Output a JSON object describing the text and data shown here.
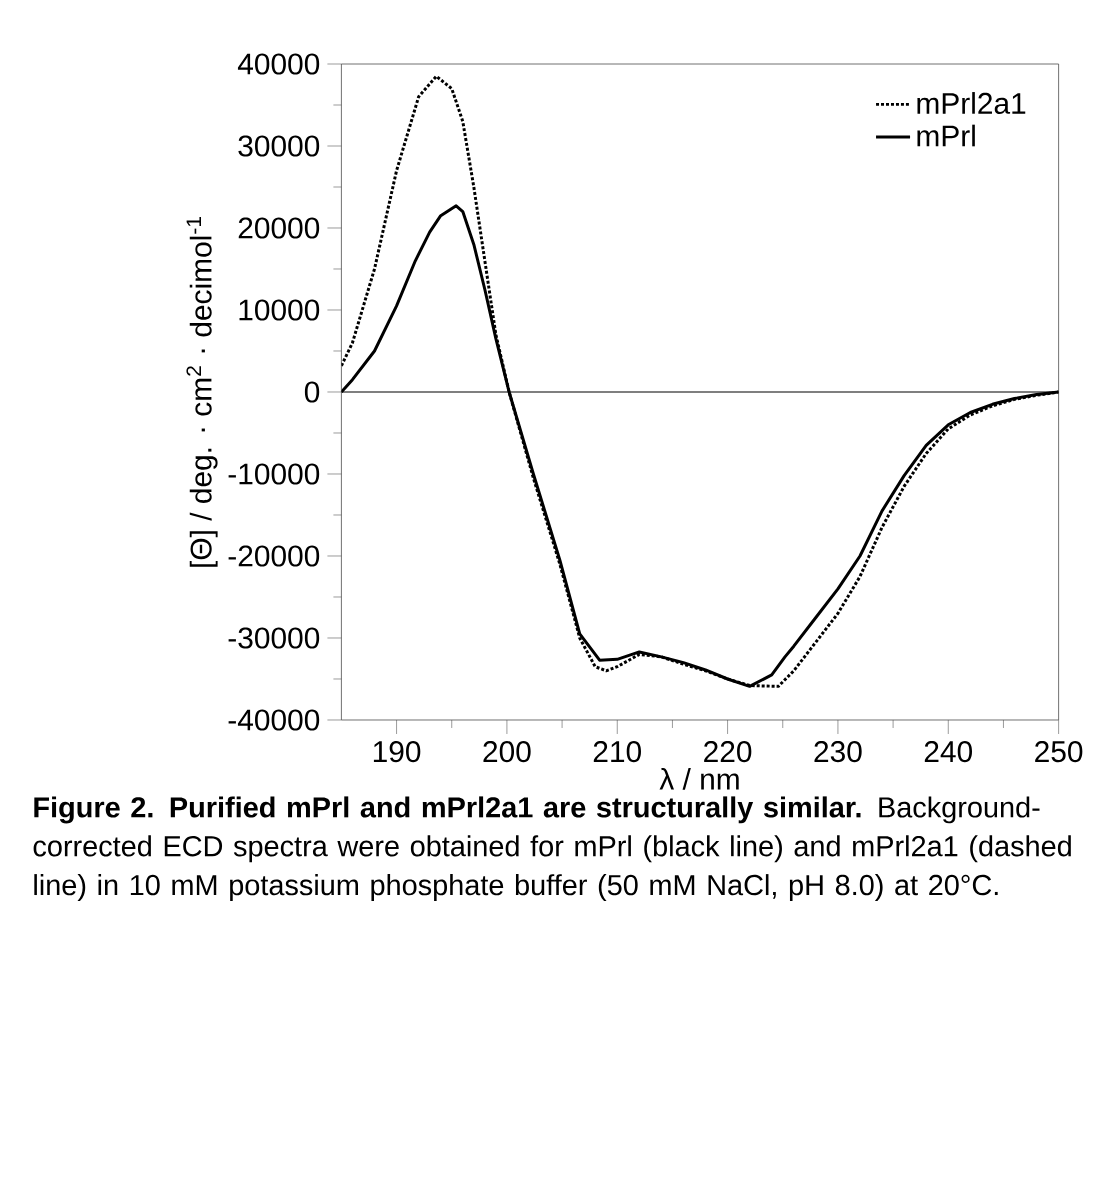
{
  "chart_data": {
    "type": "line",
    "xlabel": "λ / nm",
    "ylabel": "[Θ] / deg. · cm$^{2}$ · decimol$^{-1}$",
    "xlim": [
      185,
      250
    ],
    "xticks": [
      190,
      200,
      210,
      220,
      230,
      240,
      250
    ],
    "ylim": [
      -40000,
      40000
    ],
    "yticks": [
      -40000,
      -30000,
      -20000,
      -10000,
      0,
      10000,
      20000,
      30000,
      40000
    ],
    "legend": "top right",
    "ref_lines": [
      {
        "axis": "y",
        "value": 0,
        "color": "#000000"
      }
    ],
    "series": [
      {
        "name": "mPrl2a1",
        "color": "#000000",
        "line_style": "dotted",
        "x": [
          185,
          186,
          188,
          190,
          192,
          193.6,
          195,
          196,
          197,
          198,
          199,
          200.2,
          202.4,
          204.8,
          206.6,
          208,
          209,
          210,
          212,
          214,
          216,
          218,
          220,
          222,
          224.6,
          226,
          228,
          230,
          232,
          234,
          236,
          238,
          240,
          242,
          244,
          246,
          248,
          250
        ],
        "values": [
          3200,
          6000,
          15000,
          27000,
          36000,
          38500,
          37000,
          33000,
          25000,
          16000,
          7000,
          0,
          -10500,
          -21000,
          -30000,
          -33500,
          -34000,
          -33500,
          -32000,
          -32300,
          -33200,
          -34000,
          -35000,
          -35800,
          -35900,
          -34000,
          -30500,
          -27000,
          -22500,
          -16500,
          -11500,
          -7500,
          -4500,
          -2800,
          -1700,
          -900,
          -400,
          0
        ]
      },
      {
        "name": "mPrl",
        "color": "#000000",
        "line_style": "solid",
        "x": [
          185,
          186,
          188,
          190,
          191.7,
          193,
          194,
          195.4,
          196,
          197,
          198,
          199,
          200.2,
          202.4,
          204.8,
          206.6,
          208.4,
          210,
          212,
          214,
          216,
          218,
          220,
          222,
          224,
          225.2,
          226,
          228,
          230,
          232,
          234,
          236,
          238,
          240,
          242,
          244,
          246,
          248,
          250
        ],
        "values": [
          0,
          1500,
          5000,
          10500,
          16000,
          19500,
          21500,
          22700,
          22000,
          18000,
          12500,
          6500,
          0,
          -10000,
          -20500,
          -29500,
          -32700,
          -32600,
          -31700,
          -32300,
          -33000,
          -33900,
          -35000,
          -35900,
          -34500,
          -32300,
          -31000,
          -27500,
          -24000,
          -20000,
          -14500,
          -10200,
          -6500,
          -4000,
          -2500,
          -1500,
          -800,
          -300,
          0
        ]
      }
    ],
    "annotations": [
      "**Figure 2. Purified mPrl and mPrl2a1 are structurally similar.** Background-corrected ECD spectra were obtained for mPrl (black line) and mPrl2a1 (dashed line) in 10 mM potassium phosphate buffer (50 mM NaCl, pH 8.0) at 20°C."
    ]
  }
}
